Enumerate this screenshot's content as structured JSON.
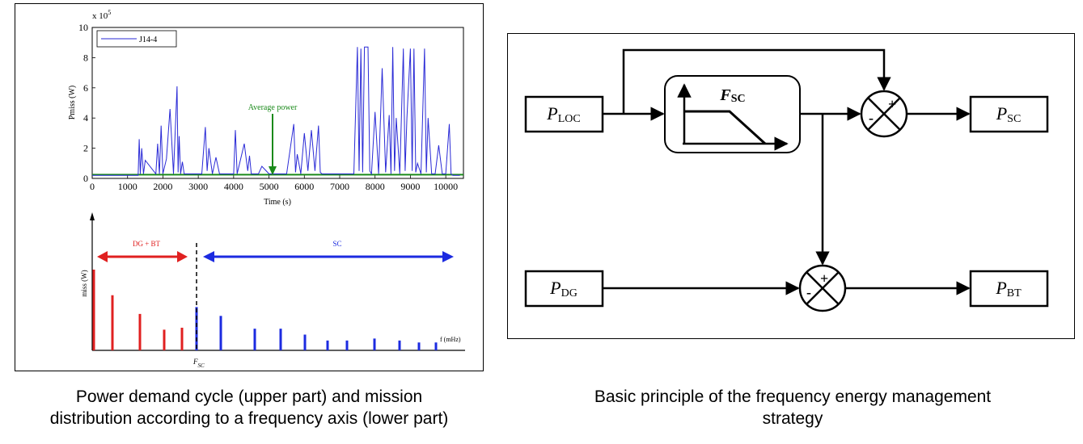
{
  "colors": {
    "series": "#2a2ad6",
    "average": "#1a8a1a",
    "dg_bt": "#e02020",
    "sc": "#1c2be0"
  },
  "left_figure": {
    "chart_data": [
      {
        "type": "line",
        "legend": [
          "J14-4"
        ],
        "legend_position": "top-left",
        "ylabel": "Pmiss (W)",
        "xlabel": "Time (s)",
        "y_multiplier": "x 10",
        "y_multiplier_exp": "5",
        "x_ticks": [
          "0",
          "1000",
          "2000",
          "3000",
          "4000",
          "5000",
          "6000",
          "7000",
          "8000",
          "9000",
          "10000"
        ],
        "y_ticks": [
          "0",
          "2",
          "4",
          "6",
          "8",
          "10"
        ],
        "xlim": [
          0,
          10500
        ],
        "ylim": [
          0,
          10
        ],
        "annotation": "Average power",
        "average_value": 0.25,
        "series": [
          {
            "name": "J14-4",
            "x": [
              0,
              1300,
              1330,
              1360,
              1400,
              1450,
              1500,
              1800,
              1850,
              1900,
              1950,
              2000,
              2100,
              2200,
              2300,
              2400,
              2430,
              2460,
              2500,
              2550,
              2600,
              2700,
              3100,
              3200,
              3250,
              3300,
              3400,
              3500,
              3600,
              4000,
              4050,
              4100,
              4300,
              4400,
              4450,
              4500,
              4700,
              4800,
              5000,
              5500,
              5700,
              5750,
              5800,
              5900,
              6000,
              6100,
              6200,
              6300,
              6400,
              6450,
              6500,
              7400,
              7500,
              7550,
              7600,
              7650,
              7700,
              7800,
              7850,
              7900,
              8000,
              8100,
              8200,
              8300,
              8400,
              8450,
              8500,
              8550,
              8600,
              8700,
              8800,
              8850,
              8900,
              9000,
              9050,
              9100,
              9150,
              9200,
              9300,
              9400,
              9450,
              9500,
              9600,
              9700,
              9800,
              9900,
              10000,
              10100,
              10150,
              10200,
              10300,
              10400
            ],
            "y": [
              0.2,
              0.2,
              2.6,
              0.3,
              2.0,
              0.3,
              1.2,
              0.3,
              2.3,
              0.3,
              3.5,
              0.3,
              1.3,
              4.6,
              0.3,
              6.1,
              0.4,
              2.8,
              0.3,
              1.1,
              0.3,
              0.3,
              0.3,
              3.4,
              0.5,
              2.0,
              0.3,
              1.4,
              0.3,
              0.3,
              3.2,
              0.3,
              2.3,
              0.5,
              1.5,
              0.3,
              0.3,
              0.8,
              0.3,
              0.3,
              3.6,
              0.4,
              1.6,
              0.3,
              3.0,
              0.5,
              3.2,
              0.5,
              3.5,
              0.4,
              0.3,
              0.3,
              8.7,
              0.5,
              8.6,
              0.4,
              8.7,
              8.7,
              0.5,
              0.3,
              4.4,
              0.3,
              7.3,
              0.4,
              4.2,
              0.3,
              8.7,
              0.5,
              4.0,
              0.3,
              8.6,
              0.5,
              4.0,
              8.6,
              0.5,
              8.6,
              0.4,
              1.0,
              0.3,
              8.6,
              0.4,
              4.0,
              0.3,
              0.3,
              2.2,
              0.3,
              0.3,
              3.6,
              0.3,
              0.2,
              0.2,
              0.2
            ]
          }
        ]
      },
      {
        "type": "bar",
        "ylabel": "miss (W)",
        "xlabel": "f (mHz)",
        "threshold_label": "F",
        "threshold_subscript": "SC",
        "regions": [
          {
            "name": "DG + BT",
            "side": "low"
          },
          {
            "name": "SC",
            "side": "high"
          }
        ],
        "series": [
          {
            "name": "DG + BT",
            "values": [
              82,
              56,
              37,
              21,
              23
            ]
          },
          {
            "name": "SC",
            "values": [
              44,
              35,
              22,
              22,
              16,
              10,
              10,
              12,
              10,
              8,
              8
            ]
          }
        ]
      }
    ]
  },
  "right_figure": {
    "blocks": {
      "p_loc": {
        "main": "P",
        "sub": "LOC"
      },
      "p_sc": {
        "main": "P",
        "sub": "SC"
      },
      "p_dg": {
        "main": "P",
        "sub": "DG"
      },
      "p_bt": {
        "main": "P",
        "sub": "BT"
      },
      "filter": {
        "main": "F",
        "sub": "SC"
      }
    },
    "summing_junctions": [
      {
        "plus": "+",
        "minus": "-"
      },
      {
        "plus": "+",
        "minus": "-"
      }
    ]
  },
  "captions": {
    "left_line1": "Power demand cycle (upper part) and mission",
    "left_line2": "distribution according to a frequency axis (lower part)",
    "right_line1": "Basic principle of the frequency energy management",
    "right_line2": "strategy"
  }
}
